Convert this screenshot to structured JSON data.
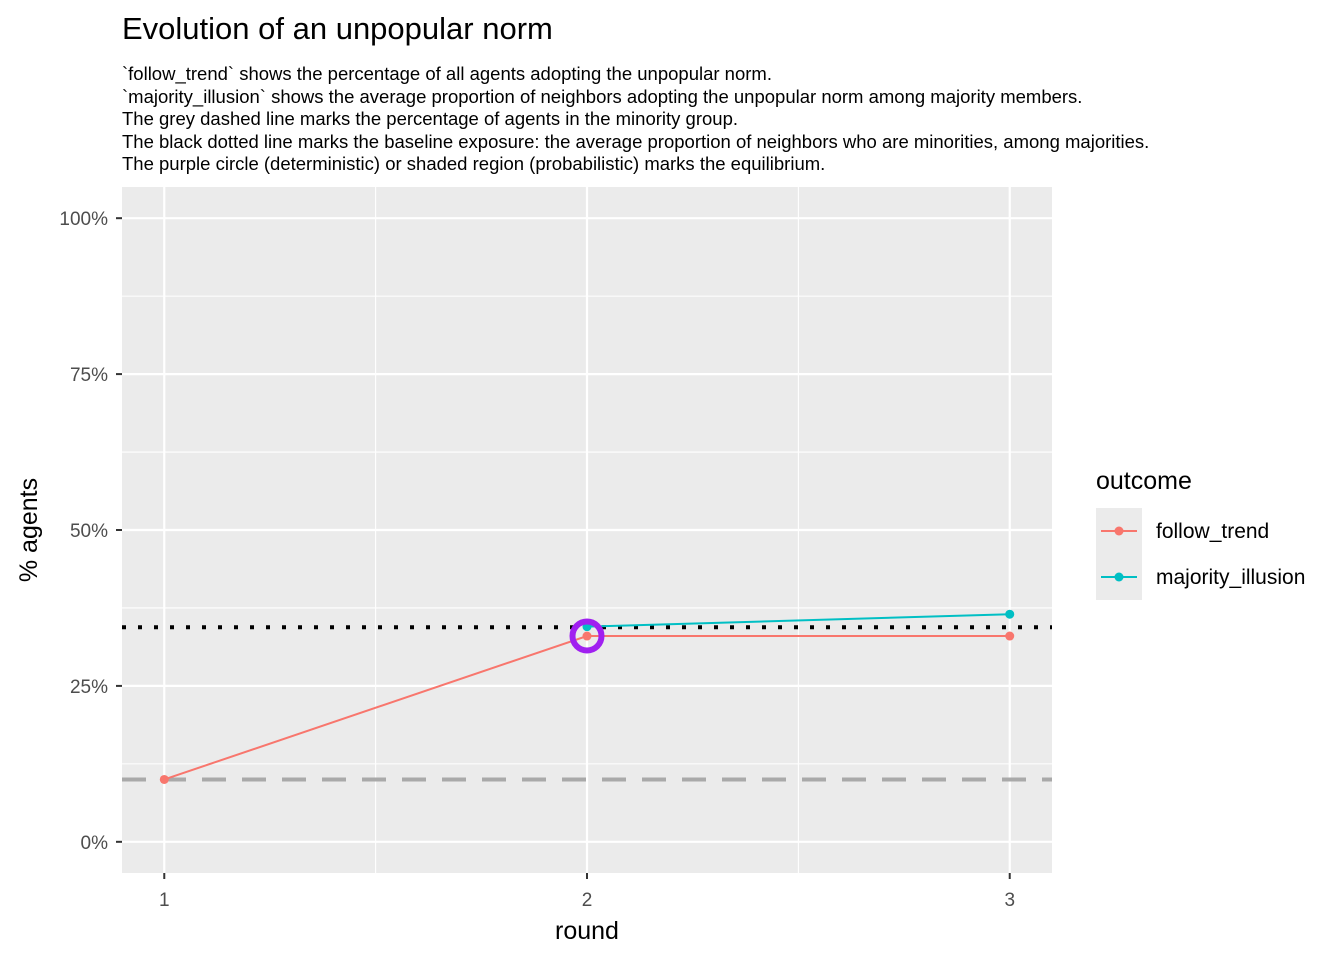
{
  "chart_data": {
    "type": "line",
    "title": "Evolution of an unpopular norm",
    "subtitle": [
      "`follow_trend` shows the percentage of all agents adopting the unpopular norm.",
      "`majority_illusion` shows the average proportion of neighbors adopting the unpopular norm among majority members.",
      "The grey dashed line marks the percentage of agents in the minority group.",
      "The black dotted line marks the baseline exposure: the average proportion of neighbors who are minorities, among majorities.",
      "The purple circle (deterministic) or shaded region (probabilistic) marks the equilibrium."
    ],
    "xlabel": "round",
    "ylabel": "% agents",
    "x_ticks": [
      "1",
      "2",
      "3"
    ],
    "y_ticks": [
      "0%",
      "25%",
      "50%",
      "75%",
      "100%"
    ],
    "xlim": [
      0.9,
      3.1
    ],
    "ylim": [
      -0.05,
      1.05
    ],
    "grid": true,
    "legend": {
      "title": "outcome",
      "placement": "right"
    },
    "series": [
      {
        "name": "follow_trend",
        "color": "#F8766D",
        "x": [
          1,
          2,
          3
        ],
        "y": [
          0.1,
          0.33,
          0.33
        ]
      },
      {
        "name": "majority_illusion",
        "color": "#00BFC4",
        "x": [
          2,
          3
        ],
        "y": [
          0.345,
          0.365
        ]
      }
    ],
    "reference_lines": [
      {
        "kind": "minority-share",
        "style": "dashed",
        "color": "#A9A9A9",
        "y": 0.1
      },
      {
        "kind": "baseline-exposure",
        "style": "dotted",
        "color": "#000000",
        "y": 0.344
      }
    ],
    "equilibrium_marker": {
      "shape": "circle",
      "color": "#A020F0",
      "x": 2,
      "y": 0.33
    }
  }
}
